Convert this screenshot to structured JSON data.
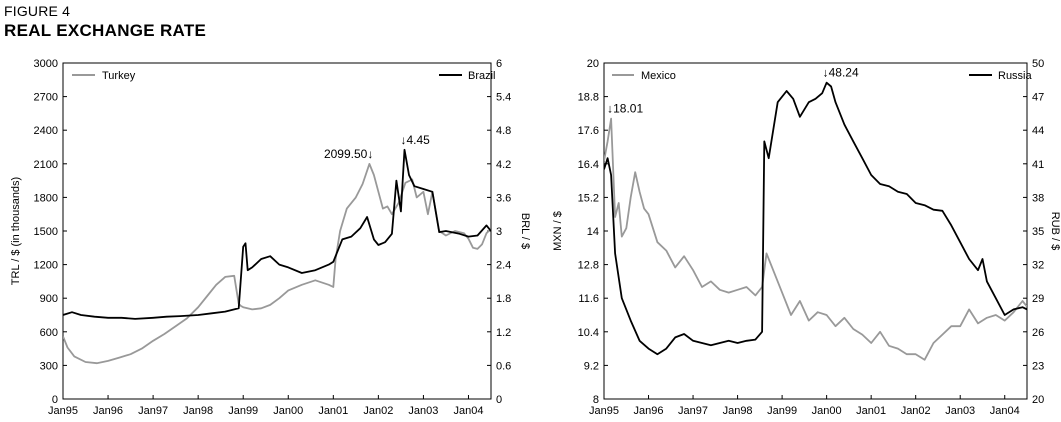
{
  "figure": {
    "label": "FIGURE 4",
    "title": "REAL EXCHANGE RATE"
  },
  "chart_data": [
    {
      "type": "line",
      "x_ticks": [
        "Jan95",
        "Jan96",
        "Jan97",
        "Jan98",
        "Jan99",
        "Jan00",
        "Jan01",
        "Jan02",
        "Jan03",
        "Jan04"
      ],
      "xlim": [
        1995.0,
        2004.5
      ],
      "ylabel_left": "TRL / $ (in thousands)",
      "ylabel_right": "BRL / $",
      "ylim_left": [
        0,
        3000
      ],
      "ylim_right": [
        0,
        6
      ],
      "yticks_left": [
        "0",
        "300",
        "600",
        "900",
        "1200",
        "1500",
        "1800",
        "2100",
        "2400",
        "2700",
        "3000"
      ],
      "yticks_right": [
        "0",
        "0.6",
        "1.2",
        "1.8",
        "2.4",
        "3",
        "3.6",
        "4.2",
        "4.8",
        "5.4",
        "6"
      ],
      "legend": "top",
      "grid": false,
      "series": [
        {
          "name": "Turkey",
          "axis": "left",
          "color": "#999999",
          "x": [
            1995.0,
            1995.1,
            1995.25,
            1995.5,
            1995.75,
            1996.0,
            1996.25,
            1996.5,
            1996.75,
            1997.0,
            1997.25,
            1997.5,
            1997.75,
            1998.0,
            1998.2,
            1998.4,
            1998.6,
            1998.8,
            1998.9,
            1998.95,
            1999.0,
            1999.2,
            1999.4,
            1999.6,
            1999.8,
            2000.0,
            2000.3,
            2000.6,
            2000.9,
            2001.0,
            2001.05,
            2001.15,
            2001.3,
            2001.5,
            2001.65,
            2001.8,
            2001.9,
            2002.0,
            2002.1,
            2002.2,
            2002.3,
            2002.45,
            2002.6,
            2002.75,
            2002.85,
            2003.0,
            2003.1,
            2003.2,
            2003.35,
            2003.5,
            2003.7,
            2003.9,
            2004.0,
            2004.1,
            2004.2,
            2004.3,
            2004.4,
            2004.5
          ],
          "y": [
            560,
            460,
            380,
            330,
            320,
            340,
            370,
            400,
            450,
            520,
            580,
            650,
            720,
            820,
            920,
            1020,
            1090,
            1100,
            850,
            830,
            820,
            800,
            810,
            840,
            900,
            970,
            1020,
            1060,
            1020,
            1000,
            1250,
            1500,
            1700,
            1800,
            1920,
            2099.5,
            2000,
            1850,
            1700,
            1720,
            1650,
            1750,
            1930,
            1960,
            1800,
            1850,
            1650,
            1850,
            1500,
            1460,
            1500,
            1480,
            1430,
            1350,
            1340,
            1380,
            1480,
            1520
          ]
        },
        {
          "name": "Brazil",
          "axis": "right",
          "color": "#000000",
          "x": [
            1995.0,
            1995.2,
            1995.4,
            1995.7,
            1996.0,
            1996.3,
            1996.6,
            1997.0,
            1997.3,
            1997.6,
            1998.0,
            1998.3,
            1998.6,
            1998.9,
            1999.0,
            1999.05,
            1999.1,
            1999.2,
            1999.4,
            1999.6,
            1999.8,
            2000.0,
            2000.3,
            2000.6,
            2000.9,
            2001.0,
            2001.2,
            2001.4,
            2001.6,
            2001.75,
            2001.9,
            2002.0,
            2002.15,
            2002.3,
            2002.4,
            2002.5,
            2002.58,
            2002.68,
            2002.8,
            2003.0,
            2003.2,
            2003.35,
            2003.5,
            2003.8,
            2004.0,
            2004.2,
            2004.4,
            2004.5
          ],
          "y": [
            1.5,
            1.55,
            1.5,
            1.47,
            1.45,
            1.45,
            1.43,
            1.45,
            1.47,
            1.48,
            1.5,
            1.53,
            1.56,
            1.62,
            2.72,
            2.78,
            2.3,
            2.35,
            2.5,
            2.55,
            2.4,
            2.35,
            2.25,
            2.3,
            2.4,
            2.45,
            2.85,
            2.9,
            3.05,
            3.25,
            2.85,
            2.75,
            2.8,
            2.95,
            3.9,
            3.35,
            4.45,
            4.0,
            3.8,
            3.75,
            3.7,
            2.98,
            3.0,
            2.95,
            2.9,
            2.92,
            3.1,
            3.0
          ]
        }
      ],
      "annotations": [
        {
          "text": "2099.50↓",
          "series": "Turkey",
          "x": 2001.8,
          "y": 2099.5
        },
        {
          "text": "↓4.45",
          "series": "Brazil",
          "x": 2002.58,
          "y": 4.45
        }
      ]
    },
    {
      "type": "line",
      "x_ticks": [
        "Jan95",
        "Jan96",
        "Jan97",
        "Jan98",
        "Jan99",
        "Jan00",
        "Jan01",
        "Jan02",
        "Jan03",
        "Jan04"
      ],
      "xlim": [
        1995.0,
        2004.5
      ],
      "ylabel_left": "MXN / $",
      "ylabel_right": "RUB / $",
      "ylim_left": [
        8,
        20
      ],
      "ylim_right": [
        20,
        50
      ],
      "yticks_left": [
        "8",
        "9.2",
        "10.4",
        "11.6",
        "12.8",
        "14",
        "15.2",
        "16.4",
        "17.6",
        "18.8",
        "20"
      ],
      "yticks_right": [
        "20",
        "23",
        "26",
        "29",
        "32",
        "35",
        "38",
        "41",
        "44",
        "47",
        "50"
      ],
      "legend": "top",
      "grid": false,
      "series": [
        {
          "name": "Mexico",
          "axis": "left",
          "color": "#999999",
          "x": [
            1995.0,
            1995.08,
            1995.16,
            1995.25,
            1995.33,
            1995.4,
            1995.5,
            1995.6,
            1995.7,
            1995.8,
            1995.9,
            1996.0,
            1996.2,
            1996.4,
            1996.6,
            1996.8,
            1997.0,
            1997.2,
            1997.4,
            1997.6,
            1997.8,
            1998.0,
            1998.2,
            1998.4,
            1998.55,
            1998.65,
            1998.8,
            1999.0,
            1999.2,
            1999.4,
            1999.6,
            1999.8,
            2000.0,
            2000.2,
            2000.4,
            2000.6,
            2000.8,
            2001.0,
            2001.2,
            2001.4,
            2001.6,
            2001.8,
            2002.0,
            2002.2,
            2002.4,
            2002.6,
            2002.8,
            2003.0,
            2003.2,
            2003.4,
            2003.6,
            2003.8,
            2004.0,
            2004.2,
            2004.4,
            2004.5
          ],
          "y": [
            16.5,
            17.2,
            18.01,
            14.5,
            15.0,
            13.8,
            14.1,
            15.2,
            16.1,
            15.4,
            14.8,
            14.6,
            13.6,
            13.3,
            12.7,
            13.1,
            12.6,
            12.0,
            12.2,
            11.9,
            11.8,
            11.9,
            12.0,
            11.7,
            12.0,
            13.2,
            12.6,
            11.8,
            11.0,
            11.5,
            10.8,
            11.1,
            11.0,
            10.6,
            10.9,
            10.5,
            10.3,
            10.0,
            10.4,
            9.9,
            9.8,
            9.6,
            9.6,
            9.4,
            10.0,
            10.3,
            10.6,
            10.6,
            11.2,
            10.7,
            10.9,
            11.0,
            10.8,
            11.1,
            11.5,
            11.3
          ]
        },
        {
          "name": "Russia",
          "axis": "right",
          "color": "#000000",
          "x": [
            1995.0,
            1995.08,
            1995.16,
            1995.25,
            1995.4,
            1995.6,
            1995.8,
            1996.0,
            1996.2,
            1996.4,
            1996.6,
            1996.8,
            1997.0,
            1997.2,
            1997.4,
            1997.6,
            1997.8,
            1998.0,
            1998.2,
            1998.4,
            1998.55,
            1998.6,
            1998.7,
            1998.9,
            1999.1,
            1999.25,
            1999.4,
            1999.6,
            1999.75,
            1999.9,
            2000.0,
            2000.1,
            2000.2,
            2000.4,
            2000.6,
            2000.8,
            2001.0,
            2001.2,
            2001.4,
            2001.6,
            2001.8,
            2002.0,
            2002.2,
            2002.4,
            2002.6,
            2002.8,
            2003.0,
            2003.2,
            2003.4,
            2003.5,
            2003.6,
            2003.8,
            2004.0,
            2004.2,
            2004.4,
            2004.5
          ],
          "y": [
            40.5,
            41.5,
            40.0,
            33.0,
            29.0,
            27.0,
            25.2,
            24.5,
            24.0,
            24.5,
            25.5,
            25.8,
            25.2,
            25.0,
            24.8,
            25.0,
            25.2,
            25.0,
            25.2,
            25.3,
            26.0,
            43.0,
            41.5,
            46.5,
            47.5,
            46.8,
            45.2,
            46.5,
            46.8,
            47.3,
            48.24,
            47.9,
            46.5,
            44.5,
            43.0,
            41.5,
            40.0,
            39.2,
            39.0,
            38.5,
            38.3,
            37.5,
            37.3,
            36.9,
            36.8,
            35.5,
            34.0,
            32.5,
            31.5,
            32.5,
            30.5,
            29.0,
            27.5,
            28.0,
            28.2,
            28.0
          ]
        }
      ],
      "annotations": [
        {
          "text": "↓18.01",
          "series": "Mexico",
          "x": 1995.16,
          "y": 18.01
        },
        {
          "text": "↓48.24",
          "series": "Russia",
          "x": 2000.0,
          "y": 48.24
        }
      ]
    }
  ]
}
